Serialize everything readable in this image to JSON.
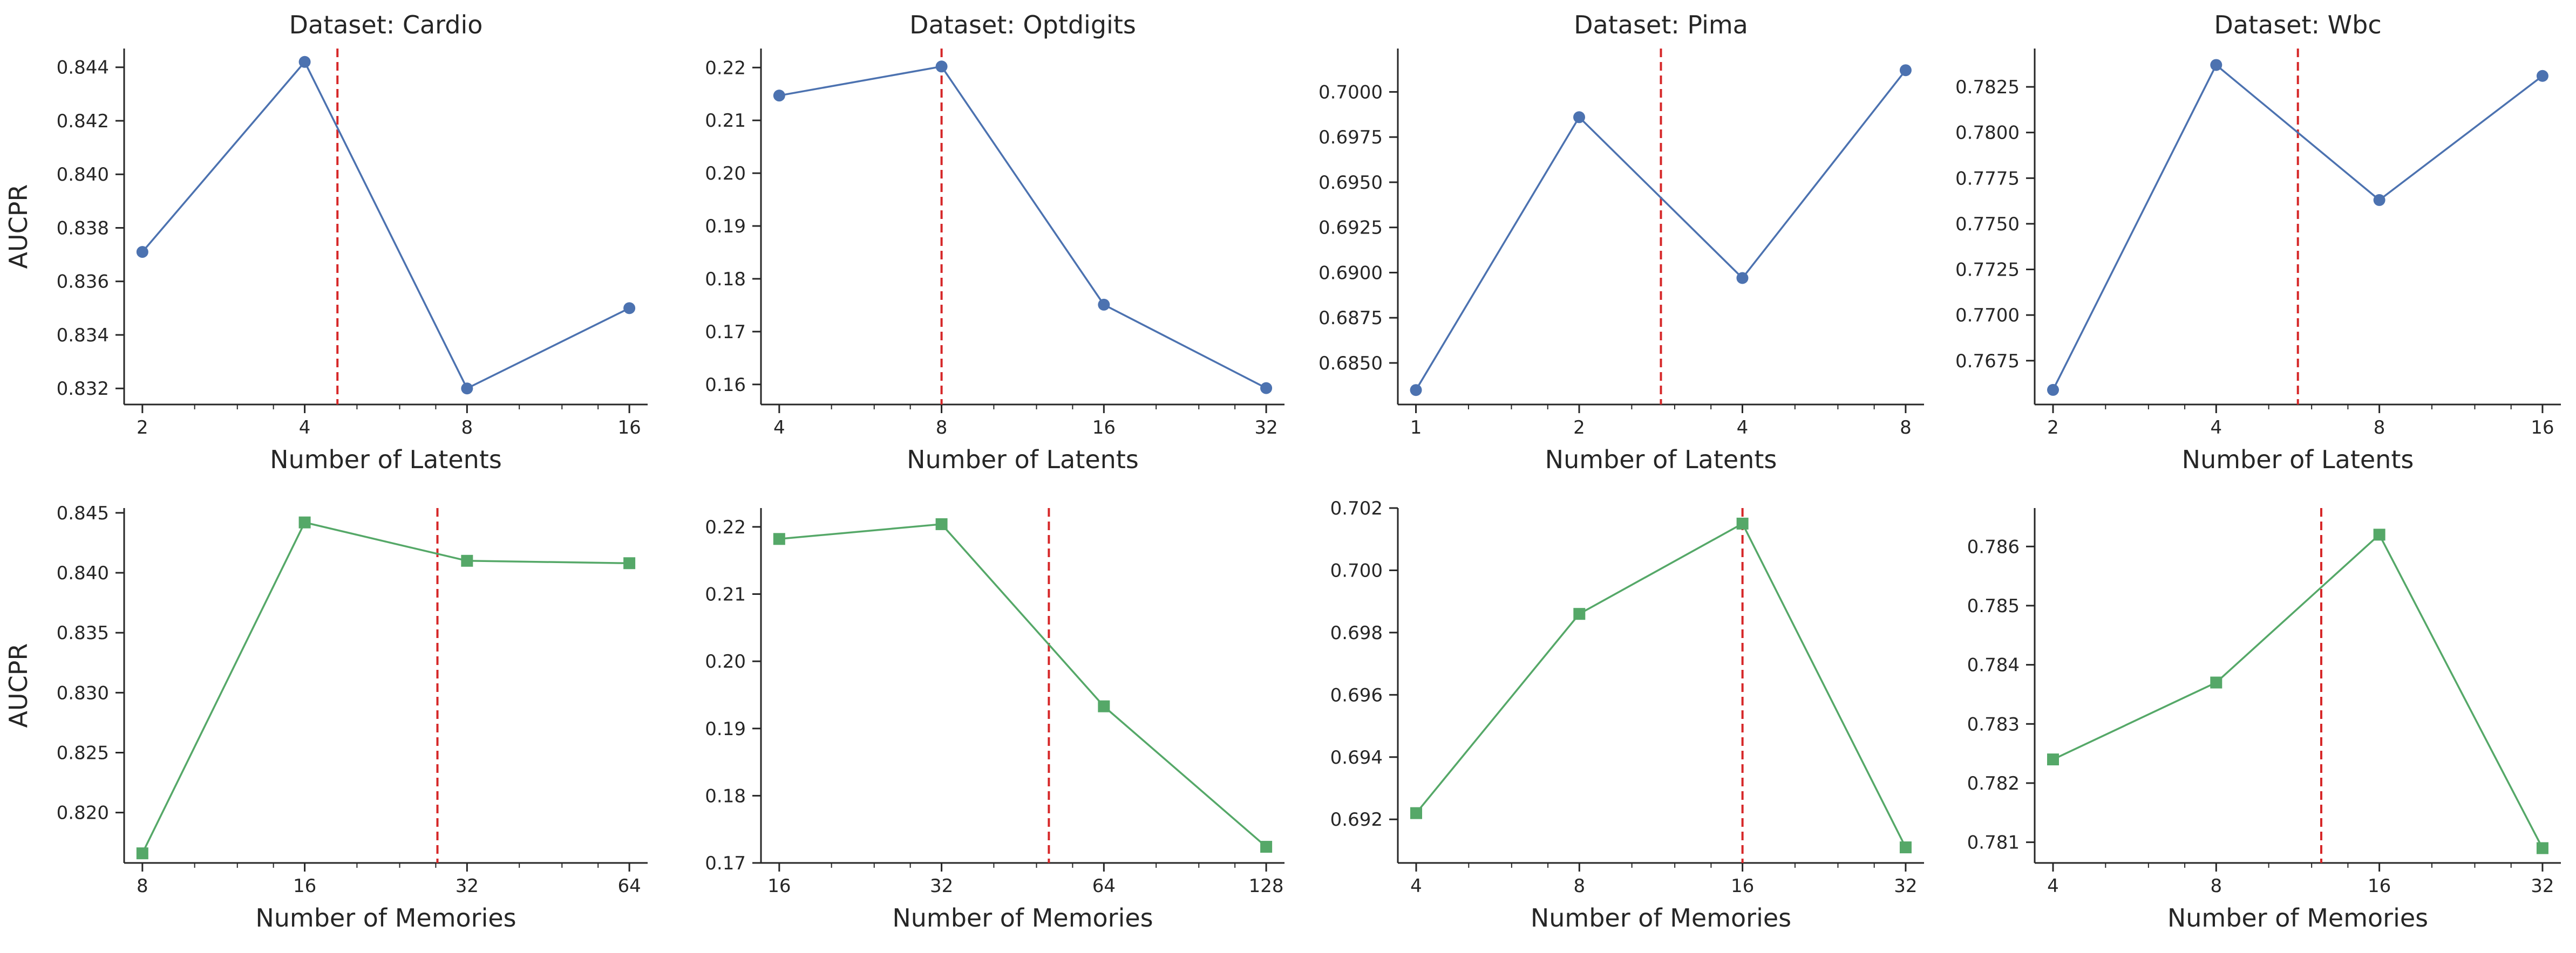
{
  "colors": {
    "latents_series": "#4c72b0",
    "memories_series": "#55a868",
    "reference_line": "#d62728",
    "axis": "#262626"
  },
  "chart_data": [
    {
      "type": "line",
      "title": "Dataset: Cardio",
      "xlabel": "Number of Latents",
      "ylabel": "AUCPR",
      "x_scale": "log2",
      "xlim": [
        1.85,
        17.3
      ],
      "ylim": [
        0.8314,
        0.8447
      ],
      "x_ticks": [
        2,
        4,
        8,
        16
      ],
      "y_ticks": [
        0.832,
        0.834,
        0.836,
        0.838,
        0.84,
        0.842,
        0.844
      ],
      "y_tick_labels": [
        "0.832",
        "0.834",
        "0.836",
        "0.838",
        "0.840",
        "0.842",
        "0.844"
      ],
      "marker": "circle",
      "color": "#4c72b0",
      "vline_x": 4.6,
      "x": [
        2,
        4,
        8,
        16
      ],
      "y": [
        0.8371,
        0.8442,
        0.832,
        0.835
      ]
    },
    {
      "type": "line",
      "title": "Dataset: Optdigits",
      "xlabel": "Number of Latents",
      "ylabel": "",
      "x_scale": "log2",
      "xlim": [
        3.7,
        34.6
      ],
      "ylim": [
        0.1562,
        0.2236
      ],
      "x_ticks": [
        4,
        8,
        16,
        32
      ],
      "y_ticks": [
        0.16,
        0.17,
        0.18,
        0.19,
        0.2,
        0.21,
        0.22
      ],
      "y_tick_labels": [
        "0.16",
        "0.17",
        "0.18",
        "0.19",
        "0.20",
        "0.21",
        "0.22"
      ],
      "marker": "circle",
      "color": "#4c72b0",
      "vline_x": 8,
      "x": [
        4,
        8,
        16,
        32
      ],
      "y": [
        0.2147,
        0.2202,
        0.1751,
        0.1593
      ]
    },
    {
      "type": "line",
      "title": "Dataset: Pima",
      "xlabel": "Number of Latents",
      "ylabel": "",
      "x_scale": "log2",
      "xlim": [
        0.926,
        8.65
      ],
      "ylim": [
        0.6827,
        0.7024
      ],
      "x_ticks": [
        1,
        2,
        4,
        8
      ],
      "y_ticks": [
        0.685,
        0.6875,
        0.69,
        0.6925,
        0.695,
        0.6975,
        0.7
      ],
      "y_tick_labels": [
        "0.6850",
        "0.6875",
        "0.6900",
        "0.6925",
        "0.6950",
        "0.6975",
        "0.7000"
      ],
      "marker": "circle",
      "color": "#4c72b0",
      "vline_x": 2.83,
      "x": [
        1,
        2,
        4,
        8
      ],
      "y": [
        0.6835,
        0.6986,
        0.6897,
        0.7012
      ]
    },
    {
      "type": "line",
      "title": "Dataset: Wbc",
      "xlabel": "Number of Latents",
      "ylabel": "",
      "x_scale": "log2",
      "xlim": [
        1.85,
        17.3
      ],
      "ylim": [
        0.7651,
        0.7846
      ],
      "x_ticks": [
        2,
        4,
        8,
        16
      ],
      "y_ticks": [
        0.7675,
        0.77,
        0.7725,
        0.775,
        0.7775,
        0.78,
        0.7825
      ],
      "y_tick_labels": [
        "0.7675",
        "0.7700",
        "0.7725",
        "0.7750",
        "0.7775",
        "0.7800",
        "0.7825"
      ],
      "marker": "circle",
      "color": "#4c72b0",
      "vline_x": 5.66,
      "x": [
        2,
        4,
        8,
        16
      ],
      "y": [
        0.7659,
        0.7837,
        0.7763,
        0.7831
      ]
    },
    {
      "type": "line",
      "title": "",
      "xlabel": "Number of Memories",
      "ylabel": "AUCPR",
      "x_scale": "log2",
      "xlim": [
        7.4,
        69.2
      ],
      "ylim": [
        0.8158,
        0.8454
      ],
      "x_ticks": [
        8,
        16,
        32,
        64
      ],
      "y_ticks": [
        0.82,
        0.825,
        0.83,
        0.835,
        0.84,
        0.845
      ],
      "y_tick_labels": [
        "0.820",
        "0.825",
        "0.830",
        "0.835",
        "0.840",
        "0.845"
      ],
      "marker": "square",
      "color": "#55a868",
      "vline_x": 28.2,
      "x": [
        8,
        16,
        32,
        64
      ],
      "y": [
        0.8166,
        0.8442,
        0.841,
        0.8408
      ]
    },
    {
      "type": "line",
      "title": "",
      "xlabel": "Number of Memories",
      "ylabel": "",
      "x_scale": "log2",
      "xlim": [
        14.8,
        138.4
      ],
      "ylim": [
        0.17,
        0.2228
      ],
      "x_ticks": [
        16,
        32,
        64,
        128
      ],
      "y_ticks": [
        0.17,
        0.18,
        0.19,
        0.2,
        0.21,
        0.22
      ],
      "y_tick_labels": [
        "0.17",
        "0.18",
        "0.19",
        "0.20",
        "0.21",
        "0.22"
      ],
      "marker": "square",
      "color": "#55a868",
      "vline_x": 50.6,
      "x": [
        16,
        32,
        64,
        128
      ],
      "y": [
        0.2182,
        0.2204,
        0.1933,
        0.1724
      ]
    },
    {
      "type": "line",
      "title": "",
      "xlabel": "Number of Memories",
      "ylabel": "",
      "x_scale": "log2",
      "xlim": [
        3.7,
        34.6
      ],
      "ylim": [
        0.6906,
        0.702
      ],
      "x_ticks": [
        4,
        8,
        16,
        32
      ],
      "y_ticks": [
        0.692,
        0.694,
        0.696,
        0.698,
        0.7,
        0.702
      ],
      "y_tick_labels": [
        "0.692",
        "0.694",
        "0.696",
        "0.698",
        "0.700",
        "0.702"
      ],
      "marker": "square",
      "color": "#55a868",
      "vline_x": 16,
      "x": [
        4,
        8,
        16,
        32
      ],
      "y": [
        0.6922,
        0.6986,
        0.7015,
        0.6911
      ]
    },
    {
      "type": "line",
      "title": "",
      "xlabel": "Number of Memories",
      "ylabel": "",
      "x_scale": "log2",
      "xlim": [
        3.7,
        34.6
      ],
      "ylim": [
        0.78065,
        0.78665
      ],
      "x_ticks": [
        4,
        8,
        16,
        32
      ],
      "y_ticks": [
        0.781,
        0.782,
        0.783,
        0.784,
        0.785,
        0.786
      ],
      "y_tick_labels": [
        "0.781",
        "0.782",
        "0.783",
        "0.784",
        "0.785",
        "0.786"
      ],
      "marker": "square",
      "color": "#55a868",
      "vline_x": 12.5,
      "x": [
        4,
        8,
        16,
        32
      ],
      "y": [
        0.7824,
        0.7837,
        0.7862,
        0.7809
      ]
    }
  ]
}
